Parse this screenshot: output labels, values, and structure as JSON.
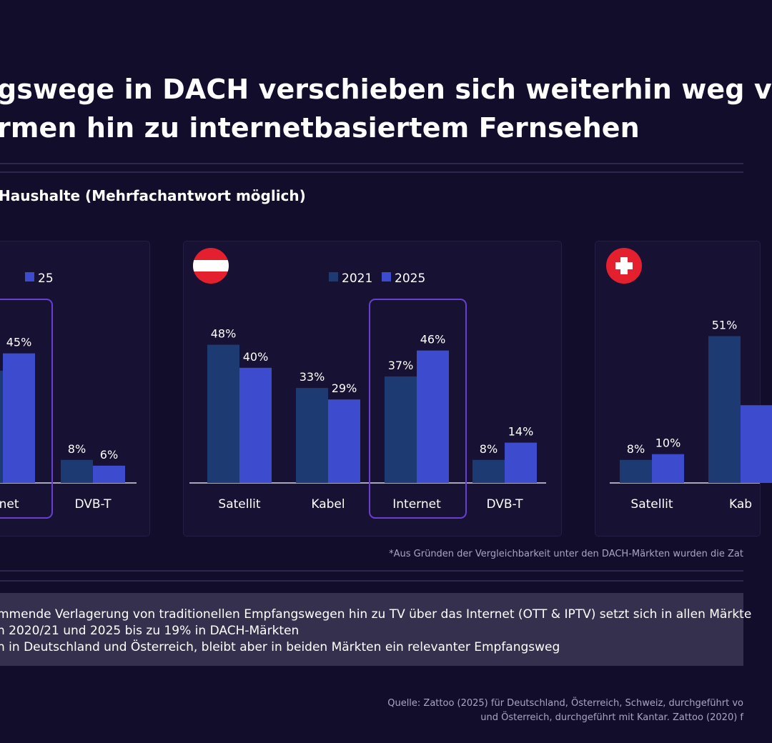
{
  "title": {
    "line1": "gswege in DACH verschieben sich weiterhin weg v",
    "line2": "rmen hin zu internetbasiertem Fernsehen"
  },
  "subtitle": "Haushalte (Mehrfachantwort möglich)",
  "footnote": "*Aus Gründen der Vergleichbarkeit unter den DACH-Märkten wurden die Zat",
  "bullets": [
    "mmende Verlagerung von traditionellen Empfangswegen hin zu TV über das Internet (OTT & IPTV) setzt sich in allen Märkte",
    "n 2020/21 und 2025 bis zu 19% in DACH-Märkten",
    "h in Deutschland und Österreich, bleibt aber in beiden Märkten ein relevanter Empfangsweg"
  ],
  "source": {
    "line1": "Quelle: Zattoo (2025) für Deutschland, Österreich, Schweiz, durchgeführt vo",
    "line2": "und Österreich, durchgeführt mit Kantar. Zattoo (2020) f"
  },
  "colors": {
    "series_2021": "#1d3a73",
    "series_2025": "#3d4bcf",
    "highlight": "#6a3fd0",
    "flag_red": "#e5202e"
  },
  "chart_data": [
    {
      "type": "bar",
      "flag": "",
      "legend": [
        "",
        "25"
      ],
      "categories": [
        "",
        "ernet",
        "DVB-T"
      ],
      "series": [
        {
          "name": "2021",
          "values": [
            null,
            39,
            8
          ],
          "labels": [
            "",
            "",
            "8%"
          ]
        },
        {
          "name": "2025",
          "values": [
            null,
            45,
            6
          ],
          "labels": [
            "",
            "45%",
            "6%"
          ]
        }
      ],
      "highlight_category": 1
    },
    {
      "type": "bar",
      "flag": "austria-flag-icon",
      "legend": [
        "2021",
        "2025"
      ],
      "categories": [
        "Satellit",
        "Kabel",
        "Internet",
        "DVB-T"
      ],
      "series": [
        {
          "name": "2021",
          "values": [
            48,
            33,
            37,
            8
          ],
          "labels": [
            "48%",
            "33%",
            "37%",
            "8%"
          ]
        },
        {
          "name": "2025",
          "values": [
            40,
            29,
            46,
            14
          ],
          "labels": [
            "40%",
            "29%",
            "46%",
            "14%"
          ]
        }
      ],
      "highlight_category": 2
    },
    {
      "type": "bar",
      "flag": "switzerland-flag-icon",
      "legend": [
        "",
        ""
      ],
      "categories": [
        "Satellit",
        "Kab"
      ],
      "series": [
        {
          "name": "2021",
          "values": [
            8,
            51
          ],
          "labels": [
            "8%",
            "51%"
          ]
        },
        {
          "name": "2025",
          "values": [
            10,
            27
          ],
          "labels": [
            "10%",
            ""
          ]
        }
      ],
      "highlight_category": null
    }
  ]
}
